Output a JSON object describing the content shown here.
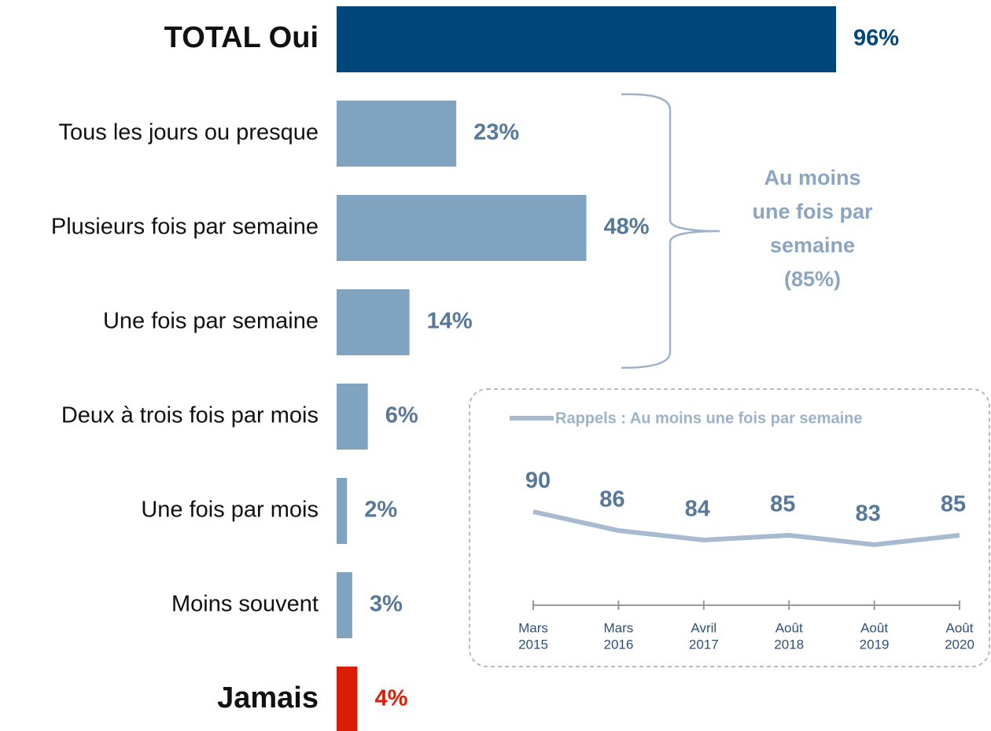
{
  "chart_data": [
    {
      "type": "bar",
      "orientation": "horizontal",
      "categories": [
        "TOTAL Oui",
        "Tous les jours ou presque",
        "Plusieurs fois par semaine",
        "Une fois par semaine",
        "Deux à trois fois par mois",
        "Une fois par mois",
        "Moins souvent",
        "Jamais"
      ],
      "values": [
        96,
        23,
        48,
        14,
        6,
        2,
        3,
        4
      ],
      "value_labels": [
        "96%",
        "23%",
        "48%",
        "14%",
        "6%",
        "2%",
        "3%",
        "4%"
      ],
      "colors": [
        "#00467a",
        "#80a3c0",
        "#80a3c0",
        "#80a3c0",
        "#80a3c0",
        "#80a3c0",
        "#80a3c0",
        "#d91e05"
      ],
      "annotation": [
        "Au moins",
        "une fois par",
        "semaine",
        "(85%)"
      ]
    },
    {
      "type": "line",
      "categories": [
        [
          "Mars",
          "2015"
        ],
        [
          "Mars",
          "2016"
        ],
        [
          "Avril",
          "2017"
        ],
        [
          "Août",
          "2018"
        ],
        [
          "Août",
          "2019"
        ],
        [
          "Août",
          "2020"
        ]
      ],
      "series": [
        {
          "name": "Rappels : Au moins une fois par semaine",
          "color": "#a7bad0",
          "values": [
            90,
            86,
            84,
            85,
            83,
            85
          ]
        }
      ]
    }
  ]
}
